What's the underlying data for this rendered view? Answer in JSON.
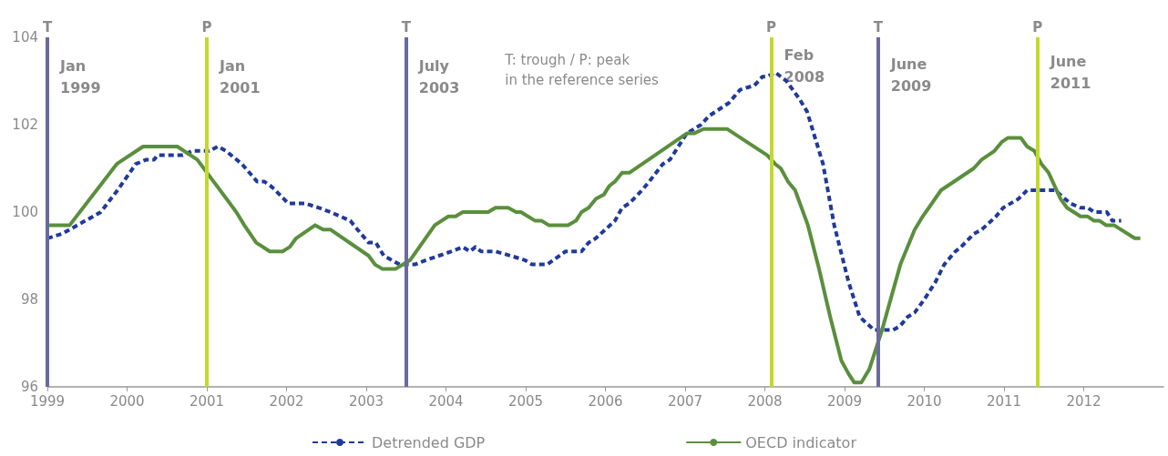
{
  "chart_data": {
    "type": "line",
    "xlim": [
      1999,
      2013
    ],
    "xticks": [
      1999,
      2000,
      2001,
      2002,
      2003,
      2004,
      2005,
      2006,
      2007,
      2008,
      2009,
      2010,
      2011,
      2012
    ],
    "ylim": [
      96,
      104
    ],
    "yticks": [
      96,
      98,
      100,
      102,
      104
    ],
    "grid": false,
    "legend": "bottom",
    "marker": "none",
    "series": [
      {
        "name": "Detrended GDP",
        "color": "#1f3a9a",
        "line_style": "dashed",
        "x": [
          1999.0,
          1999.18,
          1999.28,
          1999.67,
          1999.88,
          2000.11,
          2000.24,
          2000.34,
          2000.38,
          2000.7,
          2000.82,
          2001.03,
          2001.14,
          2001.24,
          2001.44,
          2001.63,
          2001.72,
          2001.8,
          2001.86,
          2002.02,
          2002.23,
          2002.4,
          2002.55,
          2002.8,
          2002.89,
          2003.03,
          2003.12,
          2003.22,
          2003.42,
          2003.61,
          2003.75,
          2003.91,
          2004.07,
          2004.21,
          2004.3,
          2004.37,
          2004.44,
          2004.62,
          2004.81,
          2004.99,
          2005.08,
          2005.27,
          2005.5,
          2005.7,
          2005.79,
          2005.88,
          2006.0,
          2006.12,
          2006.21,
          2006.3,
          2006.46,
          2006.55,
          2006.72,
          2006.81,
          2007.02,
          2007.11,
          2007.2,
          2007.3,
          2007.55,
          2007.69,
          2007.87,
          2007.97,
          2008.03,
          2008.13,
          2008.27,
          2008.43,
          2008.53,
          2008.73,
          2008.87,
          2009.05,
          2009.19,
          2009.37,
          2009.47,
          2009.61,
          2009.7,
          2009.79,
          2009.88,
          2010.0,
          2010.14,
          2010.25,
          2010.39,
          2010.46,
          2010.62,
          2010.72,
          2010.9,
          2010.99,
          2011.18,
          2011.29,
          2011.64,
          2011.83,
          2011.96,
          2012.05,
          2012.13,
          2012.29,
          2012.36,
          2012.47
        ],
        "values": [
          99.4,
          99.5,
          99.6,
          100.0,
          100.5,
          101.1,
          101.2,
          101.2,
          101.3,
          101.3,
          101.4,
          101.4,
          101.5,
          101.4,
          101.1,
          100.7,
          100.7,
          100.6,
          100.5,
          100.2,
          100.2,
          100.1,
          100.0,
          99.8,
          99.6,
          99.3,
          99.3,
          99.0,
          98.8,
          98.8,
          98.9,
          99.0,
          99.1,
          99.2,
          99.1,
          99.2,
          99.1,
          99.1,
          99.0,
          98.9,
          98.8,
          98.8,
          99.1,
          99.1,
          99.3,
          99.4,
          99.6,
          99.8,
          100.1,
          100.2,
          100.5,
          100.7,
          101.1,
          101.2,
          101.8,
          101.9,
          102.0,
          102.2,
          102.5,
          102.8,
          102.9,
          103.1,
          103.1,
          103.2,
          103.0,
          102.6,
          102.3,
          101.1,
          99.7,
          98.4,
          97.6,
          97.3,
          97.3,
          97.3,
          97.4,
          97.6,
          97.7,
          98.0,
          98.4,
          98.8,
          99.1,
          99.2,
          99.5,
          99.6,
          99.9,
          100.1,
          100.3,
          100.5,
          100.5,
          100.2,
          100.1,
          100.1,
          100.0,
          100.0,
          99.8,
          99.8
        ]
      },
      {
        "name": "OECD indicator",
        "color": "#5a8f3c",
        "line_style": "solid",
        "x": [
          1999.0,
          1999.28,
          1999.87,
          2000.2,
          2000.63,
          2000.88,
          2001.37,
          2001.47,
          2001.62,
          2001.79,
          2001.95,
          2002.04,
          2002.12,
          2002.36,
          2002.46,
          2002.55,
          2003.03,
          2003.11,
          2003.2,
          2003.37,
          2003.55,
          2003.86,
          2004.03,
          2004.12,
          2004.21,
          2004.53,
          2004.62,
          2004.78,
          2004.88,
          2004.94,
          2005.12,
          2005.2,
          2005.29,
          2005.53,
          2005.63,
          2005.7,
          2005.79,
          2005.88,
          2005.98,
          2006.05,
          2006.12,
          2006.21,
          2006.3,
          2007.02,
          2007.11,
          2007.23,
          2007.53,
          2008.03,
          2008.13,
          2008.2,
          2008.29,
          2008.38,
          2008.54,
          2008.68,
          2008.82,
          2008.96,
          2009.05,
          2009.12,
          2009.21,
          2009.31,
          2009.47,
          2009.7,
          2009.88,
          2009.98,
          2010.21,
          2010.62,
          2010.72,
          2010.88,
          2010.97,
          2011.05,
          2011.21,
          2011.29,
          2011.38,
          2011.47,
          2011.56,
          2011.71,
          2011.79,
          2011.96,
          2012.05,
          2012.13,
          2012.2,
          2012.28,
          2012.38,
          2012.64,
          2012.71
        ],
        "values": [
          99.7,
          99.7,
          101.1,
          101.5,
          101.5,
          101.2,
          100.0,
          99.7,
          99.3,
          99.1,
          99.1,
          99.2,
          99.4,
          99.7,
          99.6,
          99.6,
          99.0,
          98.8,
          98.7,
          98.7,
          98.9,
          99.7,
          99.9,
          99.9,
          100.0,
          100.0,
          100.1,
          100.1,
          100.0,
          100.0,
          99.8,
          99.8,
          99.7,
          99.7,
          99.8,
          100.0,
          100.1,
          100.3,
          100.4,
          100.6,
          100.7,
          100.9,
          100.9,
          101.8,
          101.8,
          101.9,
          101.9,
          101.3,
          101.1,
          101.0,
          100.7,
          100.5,
          99.7,
          98.7,
          97.6,
          96.6,
          96.3,
          96.1,
          96.1,
          96.4,
          97.3,
          98.8,
          99.6,
          99.9,
          100.5,
          101.0,
          101.2,
          101.4,
          101.6,
          101.7,
          101.7,
          101.5,
          101.4,
          101.1,
          100.9,
          100.3,
          100.1,
          99.9,
          99.9,
          99.8,
          99.8,
          99.7,
          99.7,
          99.4,
          99.4
        ]
      }
    ],
    "ref_lines": [
      {
        "axis": "x",
        "value": 1999.0,
        "label": "T",
        "color": "#6a6a9e"
      },
      {
        "axis": "x",
        "value": 2001.0,
        "label": "P",
        "color": "#c2d92c"
      },
      {
        "axis": "x",
        "value": 2003.5,
        "label": "T",
        "color": "#6a6a9e"
      },
      {
        "axis": "x",
        "value": 2008.08,
        "label": "P",
        "color": "#c2d92c"
      },
      {
        "axis": "x",
        "value": 2009.42,
        "label": "T",
        "color": "#6a6a9e"
      },
      {
        "axis": "x",
        "value": 2011.42,
        "label": "P",
        "color": "#c2d92c"
      }
    ],
    "annotations": [
      {
        "text": "Jan\n1999",
        "x": 1999.0,
        "y": 103.3
      },
      {
        "text": "Jan\n2001",
        "x": 2001.0,
        "y": 103.3
      },
      {
        "text": "July\n2003",
        "x": 2003.5,
        "y": 103.3
      },
      {
        "text": "Feb\n2008",
        "x": 2008.08,
        "y": 103.55
      },
      {
        "text": "June\n2009",
        "x": 2009.42,
        "y": 103.35
      },
      {
        "text": "June\n2011",
        "x": 2011.42,
        "y": 103.4
      },
      "T: trough / P: peak\nin the reference series"
    ]
  }
}
